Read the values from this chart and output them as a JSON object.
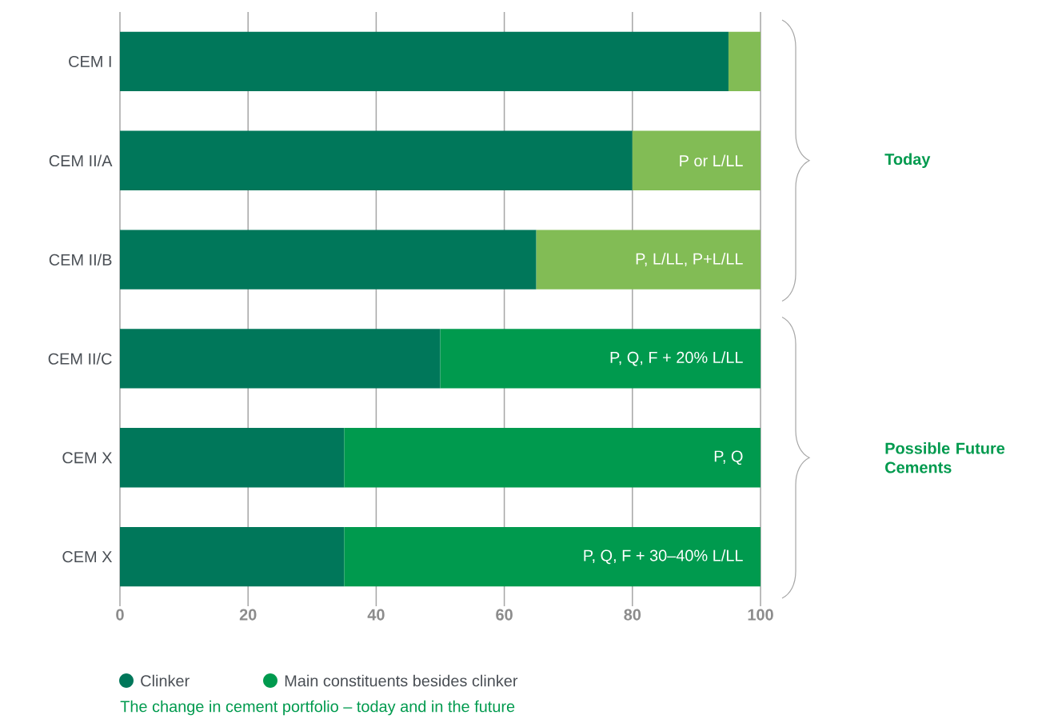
{
  "chart_data": {
    "type": "bar",
    "orientation": "horizontal",
    "stacked": true,
    "categories": [
      "CEM I",
      "CEM II/A",
      "CEM II/B",
      "CEM II/C",
      "CEM X",
      "CEM X"
    ],
    "series": [
      {
        "name": "Clinker",
        "color": "#00775a",
        "values": [
          95,
          80,
          65,
          50,
          35,
          35
        ]
      },
      {
        "name": "Main constituents besides clinker",
        "color": "#009a4e",
        "colors": [
          "#82bc55",
          "#82bc55",
          "#82bc55",
          "#009a4e",
          "#009a4e",
          "#009a4e"
        ],
        "values": [
          5,
          20,
          35,
          50,
          65,
          65
        ]
      }
    ],
    "xlim": [
      0,
      100
    ],
    "xticks": [
      0,
      20,
      40,
      60,
      80,
      100
    ],
    "grid": "x",
    "legend": "bottom",
    "annotations": [
      "Today",
      "Possible Future Cements",
      "The change in cement portfolio – today and in the future",
      "P or L/LL",
      "P, L/LL, P+L/LL",
      "P, Q, F + 20% L/LL",
      "P, Q",
      "P, Q, F + 30–40% L/LL"
    ]
  }
}
